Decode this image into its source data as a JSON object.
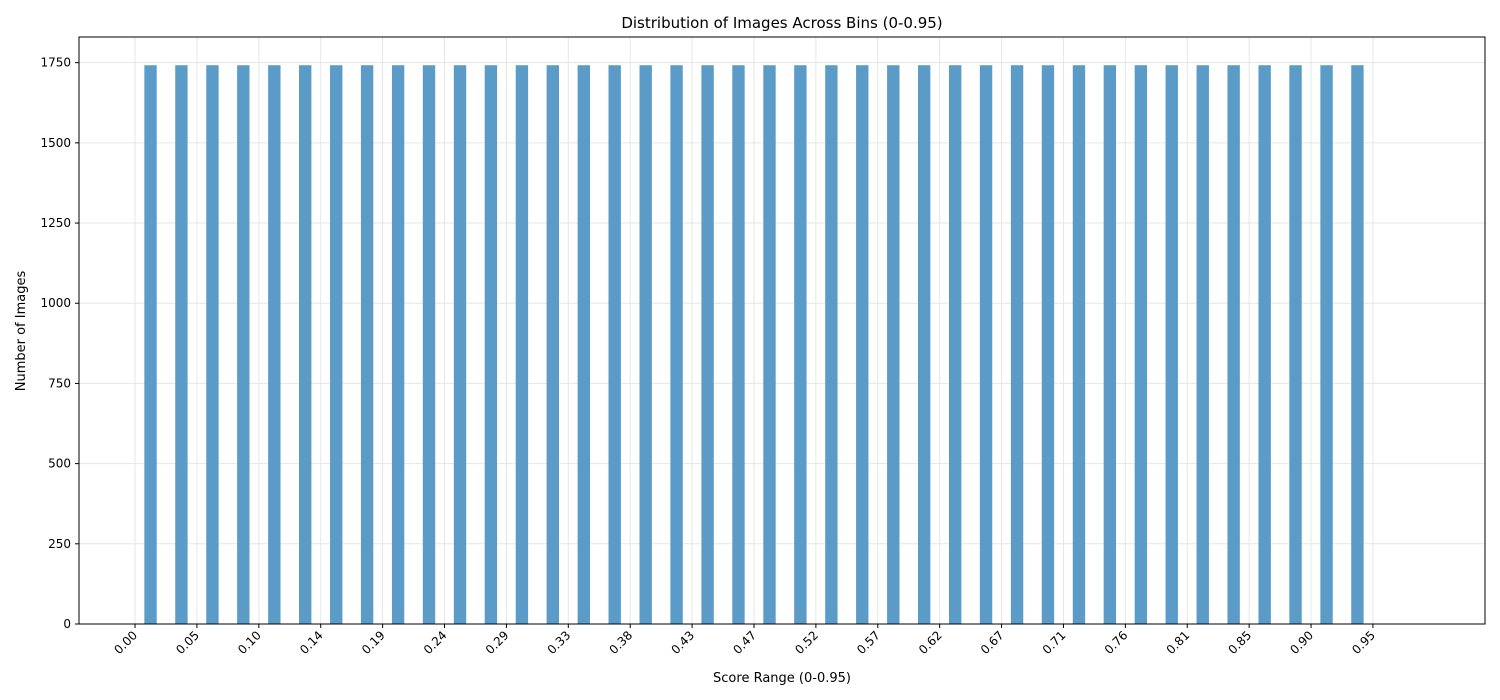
{
  "chart_data": {
    "type": "bar",
    "title": "Distribution of Images Across Bins (0-0.95)",
    "xlabel": "Score Range (0-0.95)",
    "ylabel": "Number of Images",
    "bar_color": "#5b9bc8",
    "grid": true,
    "xlim": [
      -0.043,
      1.036
    ],
    "ylim": [
      0,
      1830
    ],
    "x_tick_values": [
      0.0,
      0.0475,
      0.095,
      0.1425,
      0.19,
      0.2375,
      0.285,
      0.3325,
      0.38,
      0.4275,
      0.475,
      0.5225,
      0.57,
      0.6175,
      0.665,
      0.7125,
      0.76,
      0.8075,
      0.855,
      0.9025,
      0.95
    ],
    "x_tick_labels": [
      "0.00",
      "0.05",
      "0.10",
      "0.14",
      "0.19",
      "0.24",
      "0.29",
      "0.33",
      "0.38",
      "0.43",
      "0.47",
      "0.52",
      "0.57",
      "0.62",
      "0.67",
      "0.71",
      "0.76",
      "0.81",
      "0.85",
      "0.90",
      "0.95"
    ],
    "y_ticks": [
      0,
      250,
      500,
      750,
      1000,
      1250,
      1500,
      1750
    ],
    "y_tick_labels": [
      "0",
      "250",
      "500",
      "750",
      "1000",
      "1250",
      "1500",
      "1750"
    ],
    "bin_width": 0.0238,
    "bar_width": 0.0095,
    "x": [
      0.0119,
      0.0356,
      0.0594,
      0.0831,
      0.1069,
      0.1306,
      0.1544,
      0.1781,
      0.2019,
      0.2256,
      0.2494,
      0.2731,
      0.2969,
      0.3206,
      0.3444,
      0.3681,
      0.3919,
      0.4156,
      0.4394,
      0.4631,
      0.4869,
      0.5106,
      0.5344,
      0.5581,
      0.5819,
      0.6056,
      0.6294,
      0.6531,
      0.6769,
      0.7006,
      0.7244,
      0.7481,
      0.7719,
      0.7956,
      0.8194,
      0.8431,
      0.8669,
      0.8906,
      0.9144,
      0.9381
    ],
    "values": [
      1742,
      1742,
      1742,
      1742,
      1742,
      1742,
      1742,
      1742,
      1742,
      1742,
      1742,
      1742,
      1742,
      1742,
      1742,
      1742,
      1742,
      1742,
      1742,
      1742,
      1742,
      1742,
      1742,
      1742,
      1742,
      1742,
      1742,
      1742,
      1742,
      1742,
      1742,
      1742,
      1742,
      1742,
      1742,
      1742,
      1742,
      1742,
      1742,
      1742
    ]
  }
}
